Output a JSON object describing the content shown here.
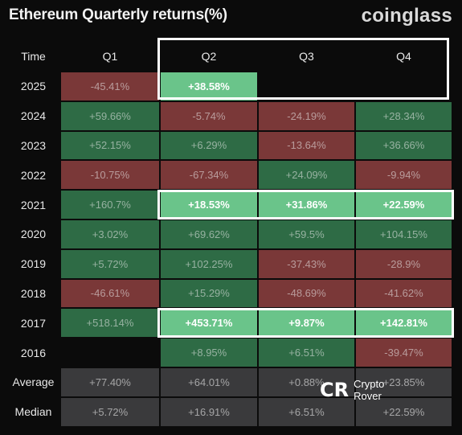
{
  "header": {
    "title": "Ethereum Quarterly returns(%)",
    "brand": "coinglass"
  },
  "watermark": {
    "logo": "CR",
    "line1": "Crypto",
    "line2": "Rover"
  },
  "colors": {
    "positive": "#2e6b45",
    "negative": "#7a3838",
    "highlight": "#6ac48a",
    "stat": "#3a3a3c"
  },
  "chart_data": {
    "type": "table",
    "title": "Ethereum Quarterly returns(%)",
    "columns": [
      "Time",
      "Q1",
      "Q2",
      "Q3",
      "Q4"
    ],
    "rows": [
      {
        "label": "2025",
        "values": [
          "-45.41%",
          "+38.58%",
          "",
          ""
        ],
        "hi": [
          false,
          true,
          false,
          false
        ]
      },
      {
        "label": "2024",
        "values": [
          "+59.66%",
          "-5.74%",
          "-24.19%",
          "+28.34%"
        ],
        "hi": [
          false,
          false,
          false,
          false
        ]
      },
      {
        "label": "2023",
        "values": [
          "+52.15%",
          "+6.29%",
          "-13.64%",
          "+36.66%"
        ],
        "hi": [
          false,
          false,
          false,
          false
        ]
      },
      {
        "label": "2022",
        "values": [
          "-10.75%",
          "-67.34%",
          "+24.09%",
          "-9.94%"
        ],
        "hi": [
          false,
          false,
          false,
          false
        ]
      },
      {
        "label": "2021",
        "values": [
          "+160.7%",
          "+18.53%",
          "+31.86%",
          "+22.59%"
        ],
        "hi": [
          false,
          true,
          true,
          true
        ]
      },
      {
        "label": "2020",
        "values": [
          "+3.02%",
          "+69.62%",
          "+59.5%",
          "+104.15%"
        ],
        "hi": [
          false,
          false,
          false,
          false
        ]
      },
      {
        "label": "2019",
        "values": [
          "+5.72%",
          "+102.25%",
          "-37.43%",
          "-28.9%"
        ],
        "hi": [
          false,
          false,
          false,
          false
        ]
      },
      {
        "label": "2018",
        "values": [
          "-46.61%",
          "+15.29%",
          "-48.69%",
          "-41.62%"
        ],
        "hi": [
          false,
          false,
          false,
          false
        ]
      },
      {
        "label": "2017",
        "values": [
          "+518.14%",
          "+453.71%",
          "+9.87%",
          "+142.81%"
        ],
        "hi": [
          false,
          true,
          true,
          true
        ]
      },
      {
        "label": "2016",
        "values": [
          "",
          "+8.95%",
          "+6.51%",
          "-39.47%"
        ],
        "hi": [
          false,
          false,
          false,
          false
        ]
      }
    ],
    "stats": [
      {
        "label": "Average",
        "values": [
          "+77.40%",
          "+64.01%",
          "+0.88%",
          "+23.85%"
        ]
      },
      {
        "label": "Median",
        "values": [
          "+5.72%",
          "+16.91%",
          "+6.51%",
          "+22.59%"
        ]
      }
    ]
  }
}
